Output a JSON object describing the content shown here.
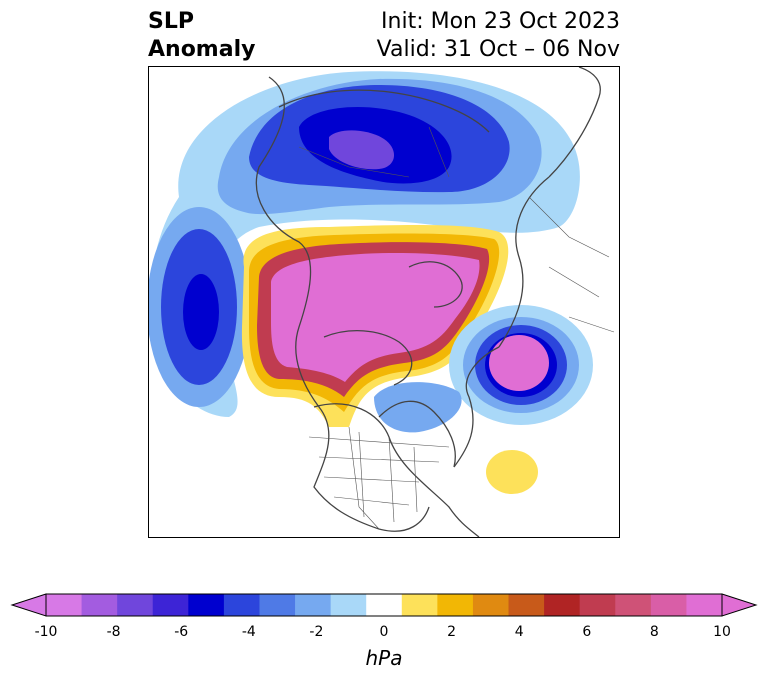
{
  "title": {
    "left_line1": "SLP",
    "left_line2": "Anomaly",
    "init": "Init: Mon 23 Oct 2023",
    "valid": "Valid: 31 Oct – 06 Nov"
  },
  "colorbar": {
    "unit": "hPa",
    "ticks": [
      "-10",
      "-8",
      "-6",
      "-4",
      "-2",
      "0",
      "2",
      "4",
      "6",
      "8",
      "10"
    ],
    "bins": [
      "#d779e6",
      "#a35ce0",
      "#7046dc",
      "#3d24d6",
      "#0000cf",
      "#2c45dc",
      "#4f7ae6",
      "#76a9f0",
      "#a9d8f8",
      "#ffffff",
      "#fde15a",
      "#f2b705",
      "#e08a11",
      "#c85a1a",
      "#b02424",
      "#c03c50",
      "#cf5277",
      "#d95ea7",
      "#e06ed4"
    ],
    "under_color": "#d779e6",
    "over_color": "#e06ed4"
  },
  "map": {
    "projection": "north-polar-stereographic"
  }
}
